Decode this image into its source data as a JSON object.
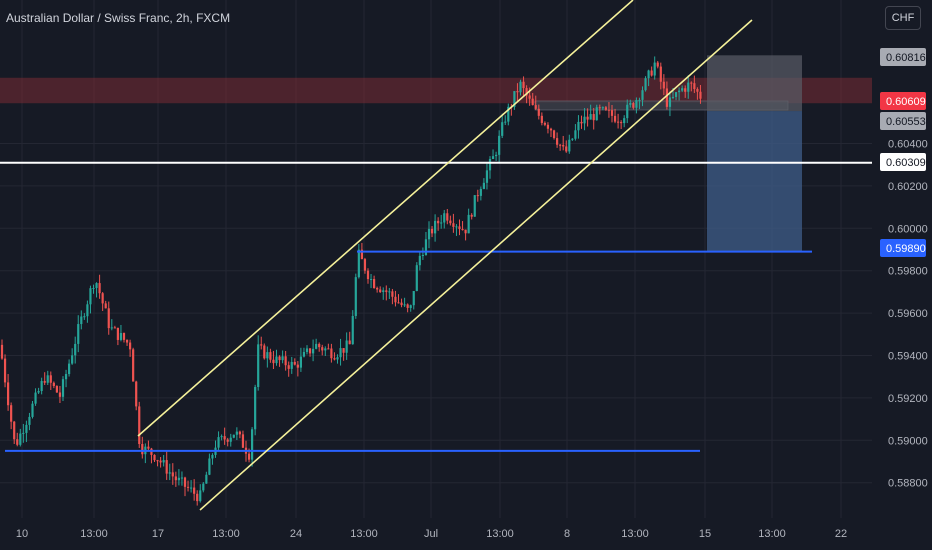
{
  "header": {
    "title": "Australian Dollar / Swiss Franc, 2h, FXCM",
    "currency_button": "CHF"
  },
  "colors": {
    "background": "#161a25",
    "grid": "#242733",
    "up_candle": "#26a69a",
    "down_candle": "#ef5350",
    "channel_line": "#f5f19a",
    "support_line": "#2962ff",
    "white_line": "#ffffff",
    "resistance_zone": "#7a2b34",
    "short_target_zone": "#3f5d8a",
    "short_stop_zone": "#5a5d66",
    "current_price_label": "#f23645",
    "blue_label": "#2962ff"
  },
  "chart_data": {
    "type": "candlestick",
    "symbol": "Australian Dollar / Swiss Franc",
    "timeframe": "2h",
    "source": "FXCM",
    "y_ticks": [
      "0.60400",
      "0.60200",
      "0.60000",
      "0.59800",
      "0.59600",
      "0.59400",
      "0.59200",
      "0.59000",
      "0.58800"
    ],
    "x_ticks": [
      "10",
      "13:00",
      "17",
      "13:00",
      "24",
      "13:00",
      "Jul",
      "13:00",
      "8",
      "13:00",
      "15",
      "13:00",
      "22"
    ],
    "price_labels": [
      {
        "value": "0.60816",
        "style": "gray"
      },
      {
        "value": "0.60609",
        "style": "red"
      },
      {
        "value": "0.60553",
        "style": "gray"
      },
      {
        "value": "0.60309",
        "style": "white"
      },
      {
        "value": "0.59890",
        "style": "blue"
      }
    ],
    "horizontal_lines": [
      {
        "name": "white-level",
        "price": 0.60309
      },
      {
        "name": "upper-support",
        "price": 0.5989
      },
      {
        "name": "lower-support",
        "price": 0.5895
      }
    ],
    "zones": [
      {
        "name": "resistance-zone",
        "from": 0.6059,
        "to": 0.6071
      },
      {
        "name": "short-stop-zone",
        "from": 0.60553,
        "to": 0.60816
      },
      {
        "name": "short-target-zone",
        "from": 0.5989,
        "to": 0.60553
      }
    ],
    "channel": {
      "lower_start": {
        "price": 0.5897
      },
      "slope_per_step": 0.0001,
      "width": 0.0011
    }
  }
}
